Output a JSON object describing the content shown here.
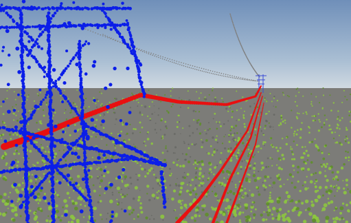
{
  "scene": {
    "kind": "3d-point-cloud-render",
    "description_elements": [
      "sky",
      "horizon",
      "vegetation-point-cloud",
      "ground-points",
      "pylon-point-cloud",
      "conductor-lines",
      "distant-pylon",
      "overhead-ground-wire"
    ]
  },
  "colors": {
    "sky_top": "#6f8fb9",
    "sky_mid": "#a9bed3",
    "sky_horizon": "#d6dde3",
    "ground": "#7c7c78",
    "ground_dark": "#5f605c",
    "vegetation": "#8dc63f",
    "vegetation_dark": "#5f8f2a",
    "pylon": "#0b1ee8",
    "conductor": "#e81010",
    "ground_wire": "#7f7f7f",
    "distant_pylon": "#3a4bd6"
  }
}
